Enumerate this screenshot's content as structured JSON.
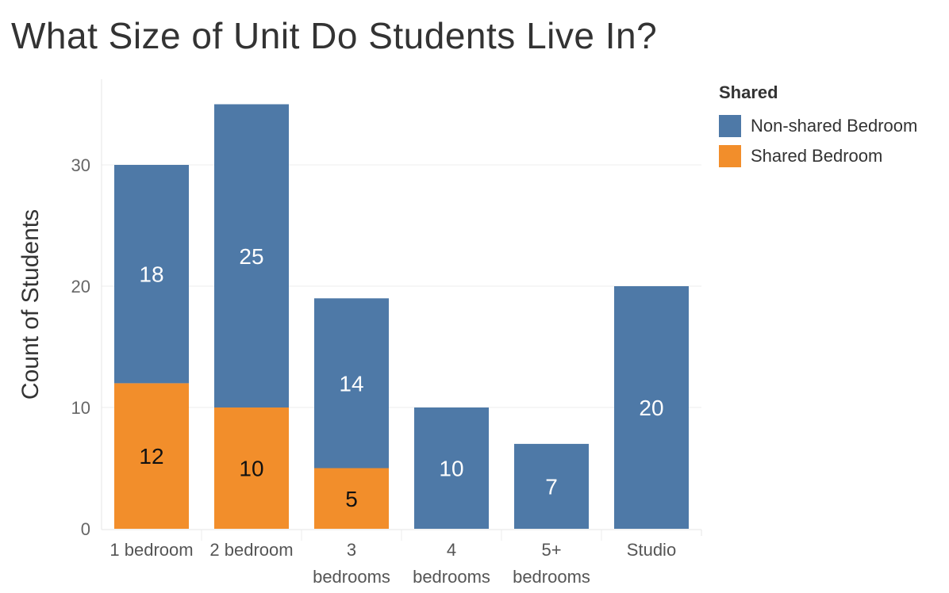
{
  "chart_data": {
    "type": "bar",
    "stacked": true,
    "title": "What Size of Unit Do Students Live In?",
    "ylabel": "Count of Students",
    "xlabel": "",
    "ylim": [
      0,
      35
    ],
    "yticks": [
      0,
      10,
      20,
      30
    ],
    "grid": true,
    "categories": [
      "1 bedroom",
      "2 bedroom",
      "3 bedrooms",
      "4 bedrooms",
      "5+ bedrooms",
      "Studio"
    ],
    "category_labels": [
      [
        "1 bedroom"
      ],
      [
        "2 bedroom"
      ],
      [
        "3",
        "bedrooms"
      ],
      [
        "4",
        "bedrooms"
      ],
      [
        "5+",
        "bedrooms"
      ],
      [
        "Studio"
      ]
    ],
    "legend": {
      "title": "Shared",
      "placement": "right"
    },
    "series": [
      {
        "name": "Shared Bedroom",
        "color": "#F28E2B",
        "values": [
          12,
          10,
          5,
          null,
          null,
          null
        ]
      },
      {
        "name": "Non-shared Bedroom",
        "color": "#4E79A7",
        "values": [
          18,
          25,
          14,
          10,
          7,
          20
        ]
      }
    ]
  }
}
